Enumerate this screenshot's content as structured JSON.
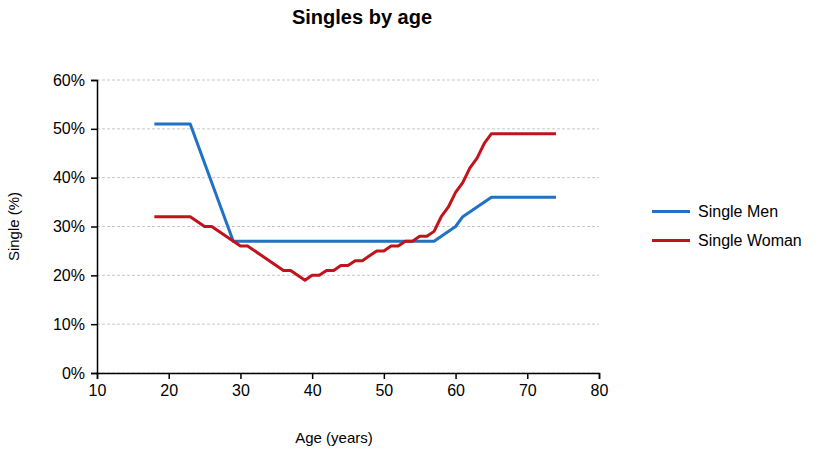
{
  "chart_data": {
    "type": "line",
    "title": "Singles by age",
    "x_label": "Age (years)",
    "y_label": "Single (%)",
    "xlim": [
      10,
      80
    ],
    "xticks": [
      10,
      20,
      30,
      40,
      50,
      60,
      70,
      80
    ],
    "ylim": [
      0,
      60
    ],
    "yticks": [
      {
        "value": 0,
        "label": "0%"
      },
      {
        "value": 10,
        "label": "10%"
      },
      {
        "value": 20,
        "label": "20%"
      },
      {
        "value": 30,
        "label": "30%"
      },
      {
        "value": 40,
        "label": "40%"
      },
      {
        "value": 50,
        "label": "50%"
      },
      {
        "value": 60,
        "label": "60%"
      }
    ],
    "grid": true,
    "legend": "right",
    "series": [
      {
        "name": "Single Men",
        "color": "#1f72c4",
        "x": [
          18,
          23,
          29,
          57,
          60,
          61,
          65,
          74
        ],
        "values": [
          51,
          51,
          27,
          27,
          30,
          32,
          36,
          36
        ]
      },
      {
        "name": "Single Woman",
        "color": "#c0141c",
        "x": [
          18,
          23,
          25,
          26,
          28,
          30,
          31,
          33,
          36,
          37,
          39,
          40,
          41,
          42,
          43,
          44,
          45,
          46,
          47,
          48,
          49,
          50,
          51,
          52,
          53,
          54,
          55,
          56,
          57,
          58,
          59,
          60,
          61,
          62,
          63,
          64,
          65,
          74
        ],
        "values": [
          32,
          32,
          30,
          30,
          28,
          26,
          26,
          24,
          21,
          21,
          19,
          20,
          20,
          21,
          21,
          22,
          22,
          23,
          23,
          24,
          25,
          25,
          26,
          26,
          27,
          27,
          28,
          28,
          29,
          32,
          34,
          37,
          39,
          42,
          44,
          47,
          49,
          49
        ]
      }
    ]
  }
}
